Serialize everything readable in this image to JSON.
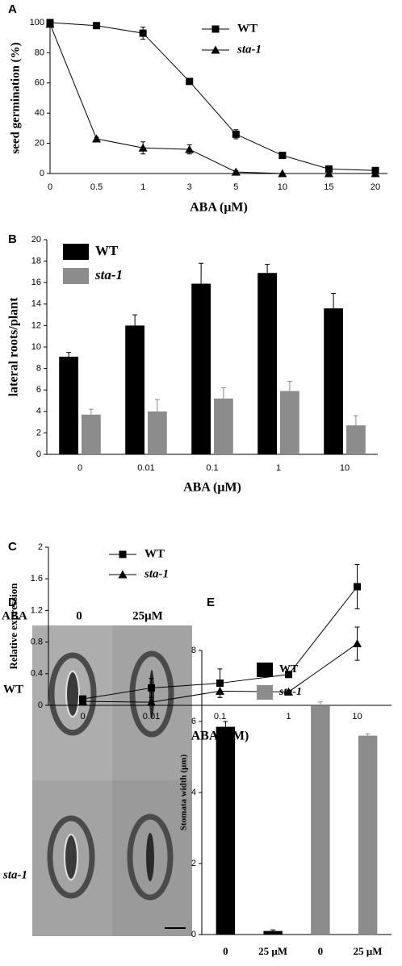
{
  "chart_data": [
    {
      "panel": "A",
      "type": "line",
      "ylabel": "seed germination (%)",
      "xlabel": "ABA (μM)",
      "categories": [
        "0",
        "0.5",
        "1",
        "3",
        "5",
        "10",
        "15",
        "20"
      ],
      "ylim": [
        0,
        100
      ],
      "yticks": [
        0,
        20,
        40,
        60,
        80,
        100
      ],
      "series": [
        {
          "name": "WT",
          "color": "#000000",
          "marker": "square",
          "values": [
            100,
            98,
            93,
            61,
            26,
            12,
            3,
            2
          ],
          "errors": [
            1,
            1,
            4,
            1,
            3,
            1,
            1,
            1
          ]
        },
        {
          "name": "sta-1",
          "color": "#000000",
          "marker": "triangle",
          "values": [
            99,
            23,
            17,
            16,
            1,
            0,
            0,
            0
          ],
          "errors": [
            1,
            1,
            4,
            3,
            1,
            0,
            0,
            0
          ]
        }
      ]
    },
    {
      "panel": "B",
      "type": "bar",
      "ylabel": "lateral roots/plant",
      "xlabel": "ABA (μM)",
      "categories": [
        "0",
        "0.01",
        "0.1",
        "1",
        "10"
      ],
      "ylim": [
        0,
        20
      ],
      "yticks": [
        0,
        2,
        4,
        6,
        8,
        10,
        12,
        14,
        16,
        18,
        20
      ],
      "series": [
        {
          "name": "WT",
          "color": "#000000",
          "values": [
            9.1,
            12,
            15.9,
            16.9,
            13.6
          ],
          "errors": [
            0.4,
            1.0,
            1.9,
            0.8,
            1.4
          ]
        },
        {
          "name": "sta-1",
          "color": "#8c8c8c",
          "values": [
            3.7,
            4.0,
            5.2,
            5.9,
            2.7
          ],
          "errors": [
            0.5,
            1.1,
            1.0,
            0.9,
            0.9
          ]
        }
      ]
    },
    {
      "panel": "C",
      "type": "line",
      "ylabel": "Relative expression",
      "xlabel": "ABA (μM)",
      "categories": [
        "0",
        "0.01",
        "0.1",
        "1",
        "10"
      ],
      "ylim": [
        0,
        2
      ],
      "yticks": [
        0,
        0.4,
        0.8,
        1.2,
        1.6,
        2
      ],
      "series": [
        {
          "name": "WT",
          "color": "#000000",
          "marker": "square",
          "values": [
            0.08,
            0.22,
            0.28,
            0.39,
            1.5
          ],
          "errors": [
            0.02,
            0.12,
            0.18,
            0.02,
            0.28
          ]
        },
        {
          "name": "sta-1",
          "color": "#000000",
          "marker": "triangle",
          "values": [
            0.05,
            0.04,
            0.18,
            0.17,
            0.78
          ],
          "errors": [
            0.01,
            0.02,
            0.08,
            0.01,
            0.21
          ]
        }
      ]
    },
    {
      "panel": "E",
      "type": "bar",
      "ylabel": "Stomata width (μm)",
      "categories": [
        "0",
        "25 μM",
        "0",
        "25 μM"
      ],
      "ylim": [
        0,
        8
      ],
      "yticks": [
        0,
        2,
        4,
        6,
        8
      ],
      "series": [
        {
          "name": "WT",
          "color": "#000000",
          "values": [
            5.85,
            0.1,
            null,
            null
          ],
          "errors": [
            0.15,
            0.03,
            null,
            null
          ]
        },
        {
          "name": "sta-1",
          "color": "#8c8c8c",
          "values": [
            null,
            null,
            6.45,
            5.6
          ],
          "errors": [
            null,
            null,
            0.1,
            0.05
          ]
        }
      ]
    }
  ],
  "micrograph": {
    "panel": "D",
    "header": [
      "ABA",
      "0",
      "25μM"
    ],
    "rows": [
      "WT",
      "sta-1"
    ]
  }
}
